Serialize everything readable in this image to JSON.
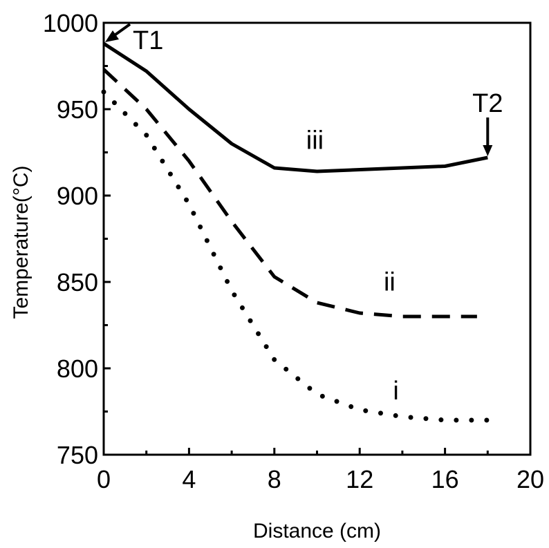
{
  "chart_data": {
    "type": "line",
    "xlabel": "Distance (cm)",
    "ylabel": "Temperature(°C)",
    "xlim": [
      0,
      20
    ],
    "ylim": [
      750,
      1000
    ],
    "x_ticks": [
      0,
      4,
      8,
      12,
      16,
      20
    ],
    "y_ticks": [
      750,
      800,
      850,
      900,
      950,
      1000
    ],
    "grid": false,
    "series": [
      {
        "name": "iii",
        "style": "solid",
        "x": [
          0,
          2,
          4,
          6,
          8,
          10,
          12,
          14,
          16,
          18
        ],
        "y": [
          988,
          972,
          950,
          930,
          916,
          914,
          915,
          916,
          917,
          922
        ]
      },
      {
        "name": "ii",
        "style": "dashed",
        "x": [
          0,
          2,
          4,
          6,
          8,
          10,
          12,
          14,
          16,
          17.5
        ],
        "y": [
          973,
          950,
          920,
          885,
          853,
          838,
          832,
          830,
          830,
          830
        ]
      },
      {
        "name": "i",
        "style": "dotted",
        "x": [
          0,
          2,
          4,
          6,
          8,
          10,
          12,
          14,
          16,
          18
        ],
        "y": [
          960,
          935,
          895,
          845,
          805,
          785,
          776,
          772,
          770,
          770
        ]
      }
    ],
    "annotations": [
      {
        "text": "T1",
        "x": 0,
        "y": 988
      },
      {
        "text": "T2",
        "x": 18,
        "y": 922
      }
    ]
  }
}
